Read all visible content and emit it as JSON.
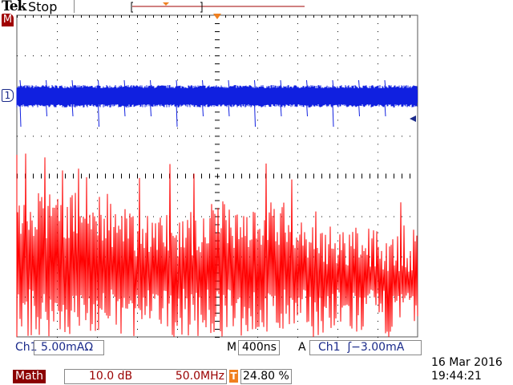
{
  "header": {
    "brand": "Tek",
    "status": "Stop"
  },
  "markers": {
    "math": "M",
    "ch1": "1"
  },
  "ch1": {
    "label": "Ch1",
    "scale": "5.00mAΩ"
  },
  "timebase": {
    "label": "M",
    "value": "400ns"
  },
  "trigger": {
    "label": "A",
    "source": "Ch1",
    "level": "ʃ−3.00mA",
    "icon": "rising-edge-icon"
  },
  "math": {
    "label": "Math",
    "scale": "10.0 dB",
    "freq": "50.0MHz",
    "t_icon": "T",
    "position": "24.80 %"
  },
  "datetime": {
    "date": "16 Mar  2016",
    "time": "19:44:21"
  },
  "colors": {
    "ch1": "#1020e0",
    "math": "#ff0000",
    "trigger": "#f08020",
    "mathbadge": "#8b0000"
  }
}
